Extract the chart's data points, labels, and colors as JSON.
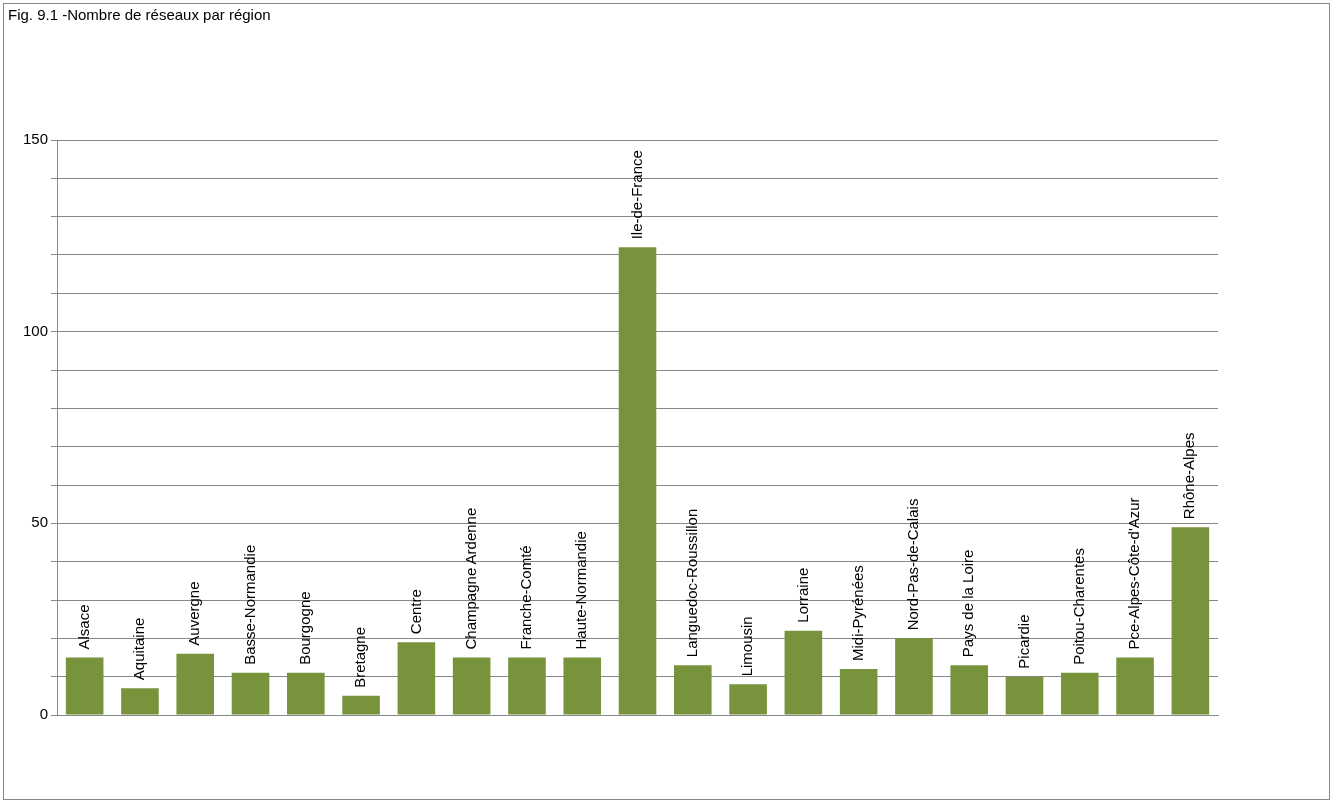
{
  "chart_data": {
    "type": "bar",
    "title": "Fig. 9.1 -Nombre de réseaux par région",
    "categories": [
      "Alsace",
      "Aquitaine",
      "Auvergne",
      "Basse-Normandie",
      "Bourgogne",
      "Bretagne",
      "Centre",
      "Champagne Ardenne",
      "Franche-Comté",
      "Haute-Normandie",
      "Ile-de-France",
      "Languedoc-Roussillon",
      "Limousin",
      "Lorraine",
      "Midi-Pyrénées",
      "Nord-Pas-de-Calais",
      "Pays de la Loire",
      "Picardie",
      "Poitou-Charentes",
      "Pce-Alpes-Côte-d'Azur",
      "Rhône-Alpes"
    ],
    "values": [
      15,
      7,
      16,
      11,
      11,
      5,
      19,
      15,
      15,
      15,
      122,
      13,
      8,
      22,
      12,
      20,
      13,
      10,
      11,
      15,
      49
    ],
    "color": "#77933c",
    "ylim": [
      0,
      150
    ],
    "yticks": [
      0,
      {
        "value": 10,
        "label": null
      },
      {
        "value": 20,
        "label": null
      },
      {
        "value": 30,
        "label": null
      },
      {
        "value": 40,
        "label": null
      },
      50,
      {
        "value": 60,
        "label": null
      },
      {
        "value": 70,
        "label": null
      },
      {
        "value": 80,
        "label": null
      },
      {
        "value": 90,
        "label": null
      },
      100,
      {
        "value": 110,
        "label": null
      },
      {
        "value": 120,
        "label": null
      },
      {
        "value": 130,
        "label": null
      },
      {
        "value": 140,
        "label": null
      },
      150
    ],
    "grid": "y",
    "legend": false
  }
}
